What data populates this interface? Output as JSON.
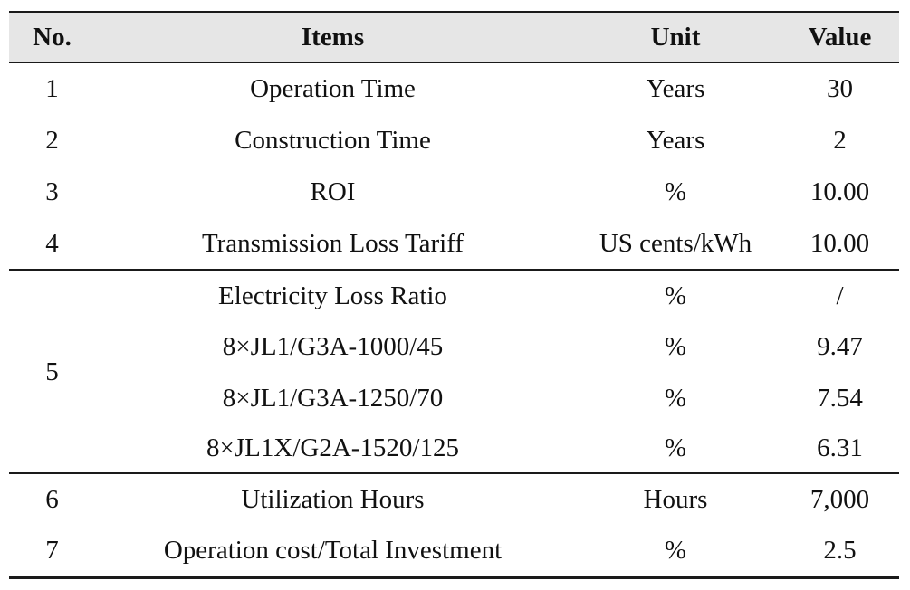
{
  "header": {
    "no": "No.",
    "items": "Items",
    "unit": "Unit",
    "value": "Value"
  },
  "rows": [
    {
      "no": "1",
      "item": "Operation Time",
      "unit": "Years",
      "value": "30"
    },
    {
      "no": "2",
      "item": "Construction Time",
      "unit": "Years",
      "value": "2"
    },
    {
      "no": "3",
      "item": "ROI",
      "unit": "%",
      "value": "10.00"
    },
    {
      "no": "4",
      "item": "Transmission Loss Tariff",
      "unit": "US cents/kWh",
      "value": "10.00"
    }
  ],
  "group5": {
    "no": "5",
    "rows": [
      {
        "item": "Electricity Loss Ratio",
        "unit": "%",
        "value": "/"
      },
      {
        "item": "8×JL1/G3A-1000/45",
        "unit": "%",
        "value": "9.47"
      },
      {
        "item": "8×JL1/G3A-1250/70",
        "unit": "%",
        "value": "7.54"
      },
      {
        "item": "8×JL1X/G2A-1520/125",
        "unit": "%",
        "value": "6.31"
      }
    ]
  },
  "rows_after": [
    {
      "no": "6",
      "item": "Utilization Hours",
      "unit": "Hours",
      "value": "7,000"
    },
    {
      "no": "7",
      "item": "Operation cost/Total Investment",
      "unit": "%",
      "value": "2.5"
    }
  ]
}
